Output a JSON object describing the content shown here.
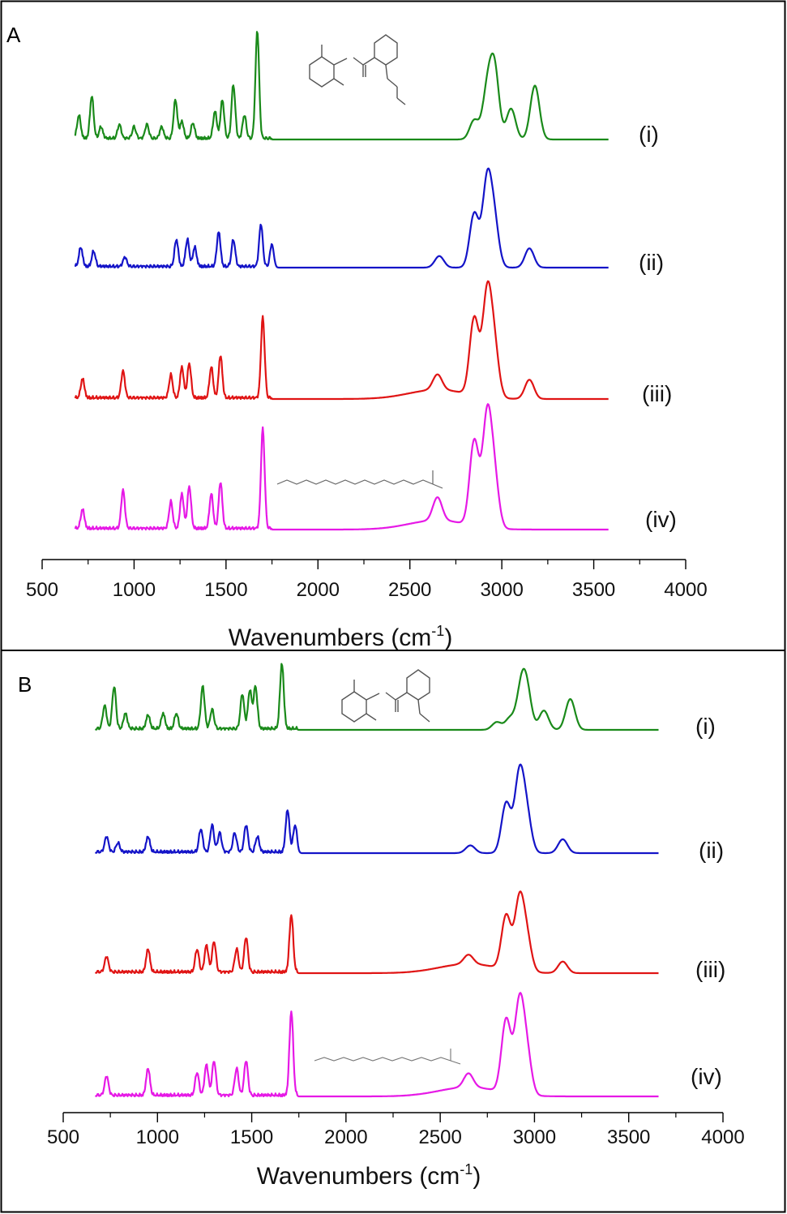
{
  "figure": {
    "colors": {
      "i": "#1a8a1a",
      "ii": "#1414c8",
      "iii": "#e01414",
      "iv": "#e619e6",
      "axis": "#000000",
      "structure": "#555555"
    }
  },
  "chart_data": [
    {
      "type": "line",
      "panel_label": "A",
      "xlabel_text": "Wavenumbers (cm",
      "xlabel_sup": "-1",
      "xlabel_close": ")",
      "xlim": [
        500,
        4000
      ],
      "xticks": [
        500,
        1000,
        1500,
        2000,
        2500,
        3000,
        3500,
        4000
      ],
      "yticks_shown": false,
      "series": [
        {
          "name": "(i)",
          "color": "#1a8a1a",
          "baseline": 0,
          "peaks": [
            [
              700,
              0.3
            ],
            [
              770,
              0.55
            ],
            [
              820,
              0.15
            ],
            [
              920,
              0.18
            ],
            [
              1000,
              0.15
            ],
            [
              1070,
              0.18
            ],
            [
              1150,
              0.15
            ],
            [
              1225,
              0.5
            ],
            [
              1260,
              0.22
            ],
            [
              1320,
              0.2
            ],
            [
              1440,
              0.35
            ],
            [
              1480,
              0.5
            ],
            [
              1540,
              0.7
            ],
            [
              1600,
              0.3
            ],
            [
              1670,
              1.4
            ],
            [
              2850,
              0.25
            ],
            [
              2920,
              0.6
            ],
            [
              2960,
              0.9
            ],
            [
              3050,
              0.4
            ],
            [
              3180,
              0.7
            ]
          ]
        },
        {
          "name": "(ii)",
          "color": "#1414c8",
          "baseline": 0,
          "peaks": [
            [
              710,
              0.25
            ],
            [
              780,
              0.2
            ],
            [
              950,
              0.12
            ],
            [
              1230,
              0.35
            ],
            [
              1290,
              0.35
            ],
            [
              1330,
              0.25
            ],
            [
              1460,
              0.45
            ],
            [
              1540,
              0.35
            ],
            [
              1690,
              0.55
            ],
            [
              1750,
              0.3
            ],
            [
              2660,
              0.15
            ],
            [
              2850,
              0.7
            ],
            [
              2920,
              1.1
            ],
            [
              2960,
              0.55
            ],
            [
              3150,
              0.25
            ]
          ]
        },
        {
          "name": "(iii)",
          "color": "#e01414",
          "baseline": 0,
          "peaks": [
            [
              720,
              0.25
            ],
            [
              940,
              0.35
            ],
            [
              1200,
              0.3
            ],
            [
              1260,
              0.4
            ],
            [
              1300,
              0.45
            ],
            [
              1420,
              0.4
            ],
            [
              1470,
              0.55
            ],
            [
              1700,
              1.05
            ],
            [
              2650,
              0.2
            ],
            [
              2850,
              1.0
            ],
            [
              2920,
              1.3
            ],
            [
              2960,
              0.6
            ],
            [
              3150,
              0.25
            ]
          ]
        },
        {
          "name": "(iv)",
          "color": "#e619e6",
          "baseline": 0,
          "peaks": [
            [
              720,
              0.25
            ],
            [
              940,
              0.5
            ],
            [
              1200,
              0.35
            ],
            [
              1260,
              0.45
            ],
            [
              1300,
              0.55
            ],
            [
              1420,
              0.45
            ],
            [
              1470,
              0.6
            ],
            [
              1700,
              1.3
            ],
            [
              2650,
              0.3
            ],
            [
              2850,
              1.1
            ],
            [
              2920,
              1.4
            ],
            [
              2960,
              0.6
            ]
          ]
        }
      ]
    },
    {
      "type": "line",
      "panel_label": "B",
      "xlabel_text": "Wavenumbers (cm",
      "xlabel_sup": "-1",
      "xlabel_close": ")",
      "xlim": [
        500,
        4000
      ],
      "xticks": [
        500,
        1000,
        1500,
        2000,
        2500,
        3000,
        3500,
        4000
      ],
      "yticks_shown": false,
      "series": [
        {
          "name": "(i)",
          "color": "#1a8a1a",
          "baseline": 0,
          "peaks": [
            [
              720,
              0.3
            ],
            [
              770,
              0.55
            ],
            [
              830,
              0.2
            ],
            [
              950,
              0.18
            ],
            [
              1030,
              0.2
            ],
            [
              1100,
              0.2
            ],
            [
              1240,
              0.55
            ],
            [
              1290,
              0.25
            ],
            [
              1450,
              0.45
            ],
            [
              1490,
              0.5
            ],
            [
              1520,
              0.55
            ],
            [
              1660,
              0.85
            ],
            [
              2800,
              0.1
            ],
            [
              2870,
              0.15
            ],
            [
              2930,
              0.5
            ],
            [
              2960,
              0.45
            ],
            [
              3050,
              0.25
            ],
            [
              3190,
              0.4
            ]
          ]
        },
        {
          "name": "(ii)",
          "color": "#1414c8",
          "baseline": 0,
          "peaks": [
            [
              730,
              0.2
            ],
            [
              790,
              0.12
            ],
            [
              950,
              0.2
            ],
            [
              1230,
              0.3
            ],
            [
              1290,
              0.35
            ],
            [
              1330,
              0.25
            ],
            [
              1410,
              0.25
            ],
            [
              1470,
              0.35
            ],
            [
              1530,
              0.2
            ],
            [
              1690,
              0.55
            ],
            [
              1730,
              0.35
            ],
            [
              2660,
              0.1
            ],
            [
              2850,
              0.65
            ],
            [
              2920,
              1.0
            ],
            [
              2960,
              0.45
            ],
            [
              3150,
              0.18
            ]
          ]
        },
        {
          "name": "(iii)",
          "color": "#e01414",
          "baseline": 0,
          "peaks": [
            [
              730,
              0.2
            ],
            [
              950,
              0.3
            ],
            [
              1210,
              0.3
            ],
            [
              1260,
              0.35
            ],
            [
              1300,
              0.4
            ],
            [
              1420,
              0.3
            ],
            [
              1470,
              0.45
            ],
            [
              1710,
              0.75
            ],
            [
              2650,
              0.12
            ],
            [
              2850,
              0.7
            ],
            [
              2920,
              0.9
            ],
            [
              2960,
              0.4
            ],
            [
              3150,
              0.15
            ]
          ]
        },
        {
          "name": "(iv)",
          "color": "#e619e6",
          "baseline": 0,
          "peaks": [
            [
              730,
              0.25
            ],
            [
              950,
              0.35
            ],
            [
              1210,
              0.3
            ],
            [
              1260,
              0.4
            ],
            [
              1300,
              0.45
            ],
            [
              1420,
              0.35
            ],
            [
              1470,
              0.45
            ],
            [
              1710,
              1.1
            ],
            [
              2650,
              0.18
            ],
            [
              2850,
              0.95
            ],
            [
              2920,
              1.15
            ],
            [
              2960,
              0.5
            ]
          ]
        }
      ]
    }
  ]
}
